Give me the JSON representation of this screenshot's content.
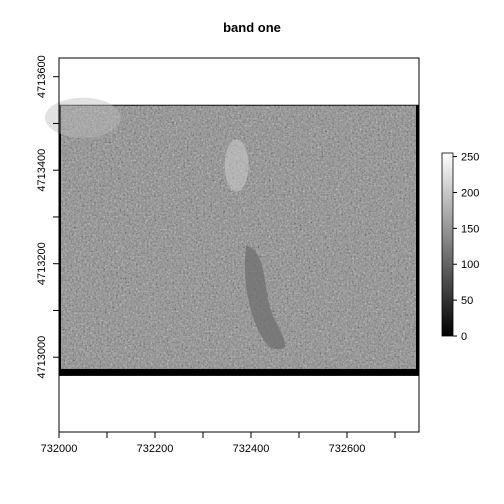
{
  "chart_data": {
    "type": "heatmap",
    "title": "band one",
    "xlabel": "",
    "ylabel": "",
    "xlim": [
      732000,
      732750
    ],
    "ylim": [
      4712840,
      4713640
    ],
    "x_ticks": [
      {
        "value": 732000,
        "label": "732000"
      },
      {
        "value": 732100,
        "label": ""
      },
      {
        "value": 732200,
        "label": "732200"
      },
      {
        "value": 732300,
        "label": ""
      },
      {
        "value": 732400,
        "label": "732400"
      },
      {
        "value": 732500,
        "label": ""
      },
      {
        "value": 732600,
        "label": "732600"
      },
      {
        "value": 732700,
        "label": ""
      }
    ],
    "y_ticks": [
      {
        "value": 4713000,
        "label": "4713000"
      },
      {
        "value": 4713100,
        "label": ""
      },
      {
        "value": 4713200,
        "label": "4713200"
      },
      {
        "value": 4713300,
        "label": ""
      },
      {
        "value": 4713400,
        "label": "4713400"
      },
      {
        "value": 4713500,
        "label": ""
      },
      {
        "value": 4713600,
        "label": "4713600"
      }
    ],
    "raster_extent": {
      "xmin": 732000,
      "xmax": 732750,
      "ymin": 4712960,
      "ymax": 4713540
    },
    "colorbar": {
      "range": [
        0,
        255
      ],
      "ticks": [
        {
          "value": 0,
          "label": "0"
        },
        {
          "value": 50,
          "label": "50"
        },
        {
          "value": 100,
          "label": "100"
        },
        {
          "value": 150,
          "label": "150"
        },
        {
          "value": 200,
          "label": "200"
        },
        {
          "value": 250,
          "label": "250"
        }
      ],
      "low_color": "#000000",
      "high_color": "#ffffff"
    },
    "grid": false,
    "legend_position": "right",
    "colors": {
      "nodata": "#000000",
      "image_mid": "#8a8a8a",
      "axis": "#000000"
    }
  }
}
